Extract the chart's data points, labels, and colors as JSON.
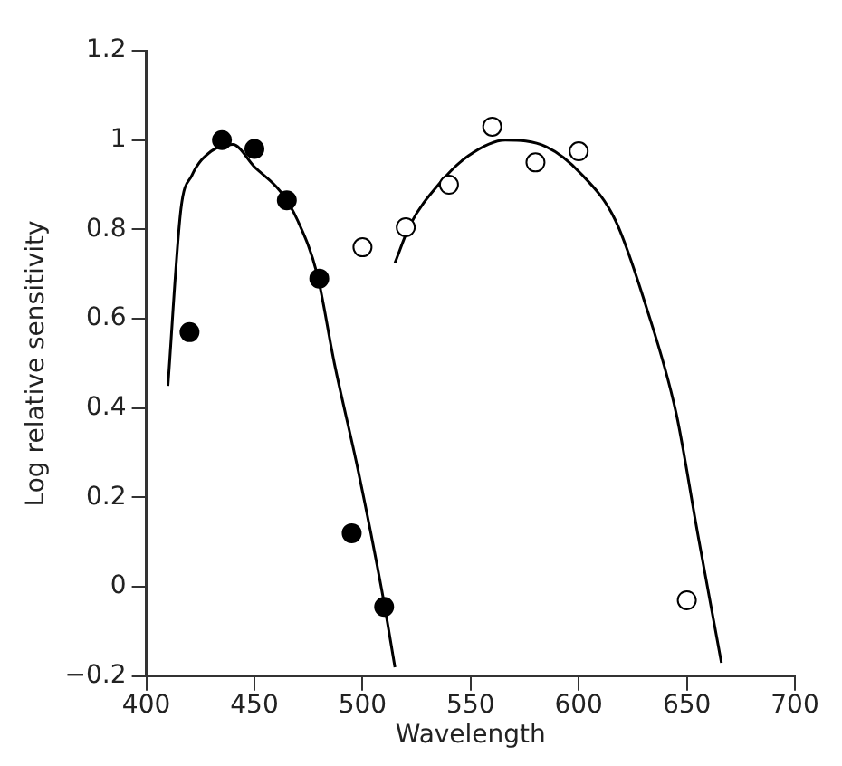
{
  "chart_data": {
    "type": "scatter",
    "xlabel": "Wavelength",
    "ylabel": "Log relative sensitivity",
    "xlim": [
      400,
      700
    ],
    "xticks": [
      400,
      450,
      500,
      550,
      600,
      650,
      700
    ],
    "ylim": [
      -0.2,
      1.2
    ],
    "yticks": [
      {
        "value": -0.2,
        "label": "−0.2"
      },
      0,
      0.2,
      0.4,
      0.6,
      0.8,
      1,
      1.2
    ],
    "grid": false,
    "legend": false,
    "marker": "circle",
    "series": [
      {
        "type": "scatter",
        "color": "#000000",
        "x": [
          420,
          435,
          450,
          465,
          480,
          495,
          510
        ],
        "values": [
          0.57,
          1.0,
          0.98,
          0.865,
          0.69,
          0.12,
          -0.045
        ]
      },
      {
        "type": "scatter",
        "color": "#ffffff",
        "x": [
          500,
          520,
          540,
          560,
          580,
          600,
          650
        ],
        "values": [
          0.76,
          0.805,
          0.9,
          1.03,
          0.95,
          0.975,
          -0.03
        ]
      },
      {
        "type": "line",
        "color": "#000000",
        "marker": "none",
        "line_style": "solid",
        "x": [
          410,
          416,
          421,
          430,
          440,
          450,
          462,
          470,
          479,
          487,
          498,
          509,
          515
        ],
        "values": [
          0.45,
          0.845,
          0.92,
          0.975,
          0.99,
          0.94,
          0.885,
          0.82,
          0.7,
          0.5,
          0.26,
          -0.01,
          -0.18
        ]
      },
      {
        "type": "line",
        "color": "#000000",
        "marker": "none",
        "line_style": "solid",
        "x": [
          515,
          522,
          536,
          549,
          566,
          585,
          601,
          617,
          631,
          645,
          655,
          666
        ],
        "values": [
          0.725,
          0.81,
          0.905,
          0.965,
          1.0,
          0.985,
          0.925,
          0.82,
          0.63,
          0.39,
          0.12,
          -0.17
        ]
      }
    ]
  }
}
